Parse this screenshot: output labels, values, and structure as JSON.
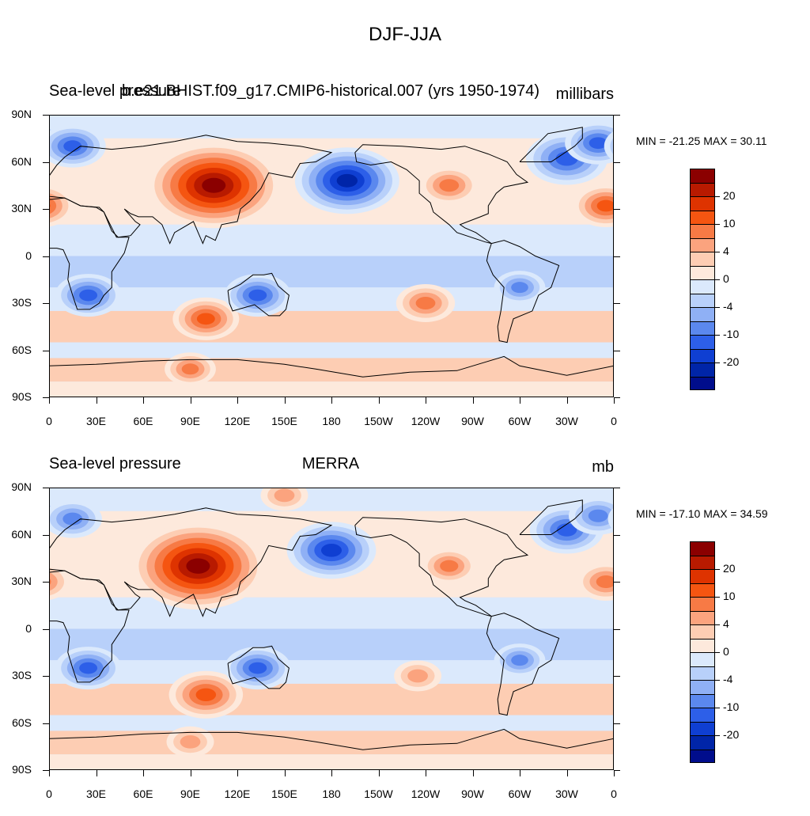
{
  "figure": {
    "title": "DJF-JJA"
  },
  "panels": [
    {
      "left_label": "Sea-level pressure",
      "center_label": "b.e21.BHIST.f09_g17.CMIP6-historical.007 (yrs 1950-1974)",
      "right_label": "millibars",
      "min_max": "MIN = -21.25 MAX =  30.11"
    },
    {
      "left_label": "Sea-level pressure",
      "center_label": "MERRA",
      "right_label": "mb",
      "min_max": "MIN = -17.10 MAX =  34.59"
    }
  ],
  "axes": {
    "lat_ticks": [
      "90N",
      "60N",
      "30N",
      "0",
      "30S",
      "60S",
      "90S"
    ],
    "lon_ticks": [
      "0",
      "30E",
      "60E",
      "90E",
      "120E",
      "150E",
      "180",
      "150W",
      "120W",
      "90W",
      "60W",
      "30W",
      "0"
    ]
  },
  "colorbar": {
    "colors": [
      "#8b0000",
      "#b81a00",
      "#de3300",
      "#f55511",
      "#f77a45",
      "#fba37e",
      "#fdcdb3",
      "#fde9dc",
      "#dbe9fc",
      "#b8d0fa",
      "#8fb0f5",
      "#5b88ee",
      "#2d5fe8",
      "#0f3fd2",
      "#0025a8",
      "#000d8c"
    ],
    "labels": [
      {
        "text": "20",
        "boundary": 2
      },
      {
        "text": "10",
        "boundary": 4
      },
      {
        "text": "4",
        "boundary": 6
      },
      {
        "text": "0",
        "boundary": 8
      },
      {
        "text": "-4",
        "boundary": 10
      },
      {
        "text": "-10",
        "boundary": 12
      },
      {
        "text": "-20",
        "boundary": 14
      }
    ]
  },
  "chart_data": [
    {
      "type": "heatmap",
      "title": "Sea-level pressure DJF-JJA, b.e21.BHIST.f09_g17.CMIP6-historical.007 (yrs 1950-1974)",
      "units": "millibars",
      "min": -21.25,
      "max": 30.11,
      "x_range": [
        0,
        360
      ],
      "y_range": [
        -90,
        90
      ],
      "features": [
        {
          "name": "siberian-high",
          "lon": 105,
          "lat": 45,
          "value": 28
        },
        {
          "name": "aleutian-low",
          "lon": 190,
          "lat": 48,
          "value": -20
        },
        {
          "name": "icelandic-low",
          "lon": 330,
          "lat": 62,
          "value": -14
        },
        {
          "name": "greenland-sea-low",
          "lon": 350,
          "lat": 72,
          "value": -10
        },
        {
          "name": "azores-high",
          "lon": 355,
          "lat": 32,
          "value": 10
        },
        {
          "name": "north-america-high",
          "lon": 255,
          "lat": 45,
          "value": 8
        },
        {
          "name": "scandinavia-low",
          "lon": 15,
          "lat": 70,
          "value": -10
        },
        {
          "name": "south-indian-high",
          "lon": 100,
          "lat": -40,
          "value": 10
        },
        {
          "name": "south-pacific-high",
          "lon": 240,
          "lat": -30,
          "value": 8
        },
        {
          "name": "australia-low",
          "lon": 133,
          "lat": -25,
          "value": -10
        },
        {
          "name": "south-africa-low",
          "lon": 25,
          "lat": -25,
          "value": -10
        },
        {
          "name": "south-america-low",
          "lon": 300,
          "lat": -20,
          "value": -6
        },
        {
          "name": "antarctic-ring-high",
          "lon": 90,
          "lat": -72,
          "value": 6
        }
      ]
    },
    {
      "type": "heatmap",
      "title": "Sea-level pressure DJF-JJA, MERRA",
      "units": "mb",
      "min": -17.1,
      "max": 34.59,
      "x_range": [
        0,
        360
      ],
      "y_range": [
        -90,
        90
      ],
      "features": [
        {
          "name": "siberian-high",
          "lon": 95,
          "lat": 40,
          "value": 32
        },
        {
          "name": "aleutian-low",
          "lon": 180,
          "lat": 50,
          "value": -16
        },
        {
          "name": "icelandic-low",
          "lon": 330,
          "lat": 63,
          "value": -12
        },
        {
          "name": "greenland-sea-low",
          "lon": 350,
          "lat": 72,
          "value": -8
        },
        {
          "name": "azores-high",
          "lon": 355,
          "lat": 30,
          "value": 8
        },
        {
          "name": "north-america-high",
          "lon": 255,
          "lat": 40,
          "value": 7
        },
        {
          "name": "arctic-high",
          "lon": 150,
          "lat": 85,
          "value": 5
        },
        {
          "name": "scandinavia-low",
          "lon": 15,
          "lat": 70,
          "value": -8
        },
        {
          "name": "south-indian-high",
          "lon": 100,
          "lat": -42,
          "value": 12
        },
        {
          "name": "south-pacific-high",
          "lon": 235,
          "lat": -30,
          "value": 5
        },
        {
          "name": "australia-low",
          "lon": 133,
          "lat": -25,
          "value": -10
        },
        {
          "name": "south-africa-low",
          "lon": 25,
          "lat": -25,
          "value": -10
        },
        {
          "name": "south-america-low",
          "lon": 300,
          "lat": -20,
          "value": -6
        },
        {
          "name": "antarctic-ring-high",
          "lon": 90,
          "lat": -72,
          "value": 5
        }
      ]
    }
  ]
}
